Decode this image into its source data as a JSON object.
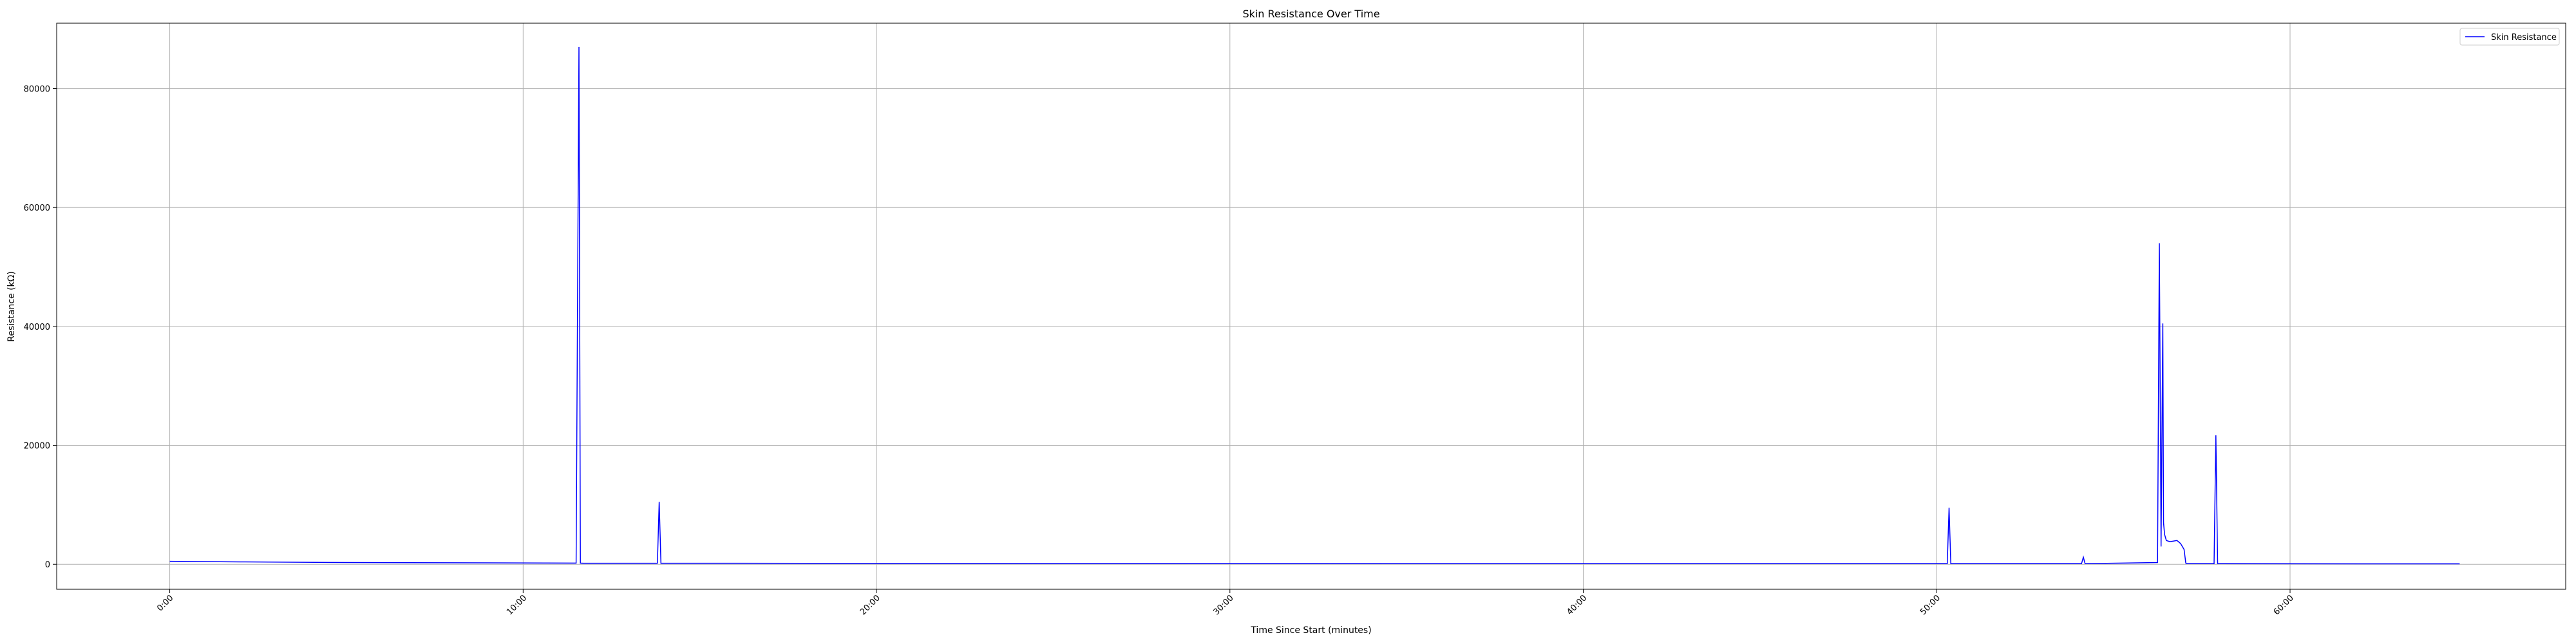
{
  "chart_data": {
    "type": "line",
    "title": "Skin Resistance Over Time",
    "xlabel": "Time Since Start (minutes)",
    "ylabel": "Resistance (kΩ)",
    "xlim": [
      -3.2,
      67.8
    ],
    "ylim": [
      -4200,
      91000
    ],
    "x_ticks": [
      {
        "value": 0,
        "label": "0:00"
      },
      {
        "value": 10,
        "label": "10:00"
      },
      {
        "value": 20,
        "label": "20:00"
      },
      {
        "value": 30,
        "label": "30:00"
      },
      {
        "value": 40,
        "label": "40:00"
      },
      {
        "value": 50,
        "label": "50:00"
      },
      {
        "value": 60,
        "label": "60:00"
      }
    ],
    "y_ticks": [
      {
        "value": 0,
        "label": "0"
      },
      {
        "value": 20000,
        "label": "20000"
      },
      {
        "value": 40000,
        "label": "40000"
      },
      {
        "value": 60000,
        "label": "60000"
      },
      {
        "value": 80000,
        "label": "80000"
      }
    ],
    "grid": true,
    "legend_position": "top-right",
    "series": [
      {
        "name": "Skin Resistance",
        "color": "#0000ff",
        "x": [
          0,
          2,
          5,
          8,
          11.5,
          11.58,
          11.62,
          11.7,
          13.8,
          13.85,
          13.9,
          20,
          30,
          40,
          50.3,
          50.35,
          50.4,
          54.1,
          54.15,
          54.2,
          56.25,
          56.3,
          56.35,
          56.4,
          56.42,
          56.45,
          56.5,
          56.6,
          56.8,
          56.9,
          57.0,
          57.05,
          57.1,
          57.2,
          57.85,
          57.9,
          57.95,
          58.0,
          62,
          64.8
        ],
        "y": [
          500,
          400,
          300,
          250,
          200,
          87000,
          200,
          180,
          180,
          10500,
          180,
          150,
          120,
          100,
          100,
          9500,
          100,
          100,
          1200,
          100,
          300,
          54000,
          3000,
          40500,
          7000,
          5000,
          4000,
          3800,
          4000,
          3500,
          2500,
          200,
          100,
          100,
          100,
          21700,
          100,
          100,
          80,
          80
        ]
      }
    ]
  }
}
